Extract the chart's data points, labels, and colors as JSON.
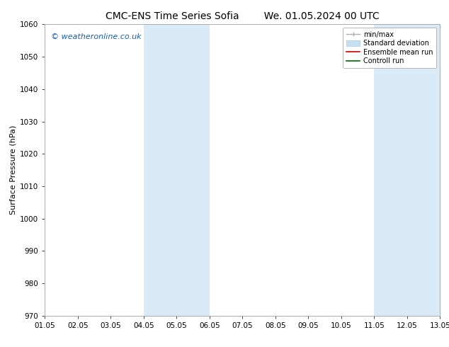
{
  "title_left": "CMC-ENS Time Series Sofia",
  "title_right": "We. 01.05.2024 00 UTC",
  "ylabel": "Surface Pressure (hPa)",
  "xlim": [
    0,
    12
  ],
  "ylim": [
    970,
    1060
  ],
  "yticks": [
    970,
    980,
    990,
    1000,
    1010,
    1020,
    1030,
    1040,
    1050,
    1060
  ],
  "xtick_labels": [
    "01.05",
    "02.05",
    "03.05",
    "04.05",
    "05.05",
    "06.05",
    "07.05",
    "08.05",
    "09.05",
    "10.05",
    "11.05",
    "12.05",
    "13.05"
  ],
  "shaded_regions": [
    {
      "xmin": 3,
      "xmax": 5,
      "color": "#daeaf6"
    },
    {
      "xmin": 10,
      "xmax": 12,
      "color": "#daeaf6"
    }
  ],
  "watermark": "© weatheronline.co.uk",
  "watermark_color": "#1a5fa8",
  "legend_items": [
    {
      "label": "min/max",
      "color": "#b0b0b0",
      "style": "errorbar"
    },
    {
      "label": "Standard deviation",
      "color": "#c8dff0",
      "style": "rect"
    },
    {
      "label": "Ensemble mean run",
      "color": "#cc0000",
      "style": "line"
    },
    {
      "label": "Controll run",
      "color": "#006600",
      "style": "line"
    }
  ],
  "bg_color": "#ffffff",
  "spine_color": "#aaaaaa",
  "title_fontsize": 10,
  "tick_fontsize": 7.5,
  "ylabel_fontsize": 8,
  "legend_fontsize": 7,
  "watermark_fontsize": 8
}
